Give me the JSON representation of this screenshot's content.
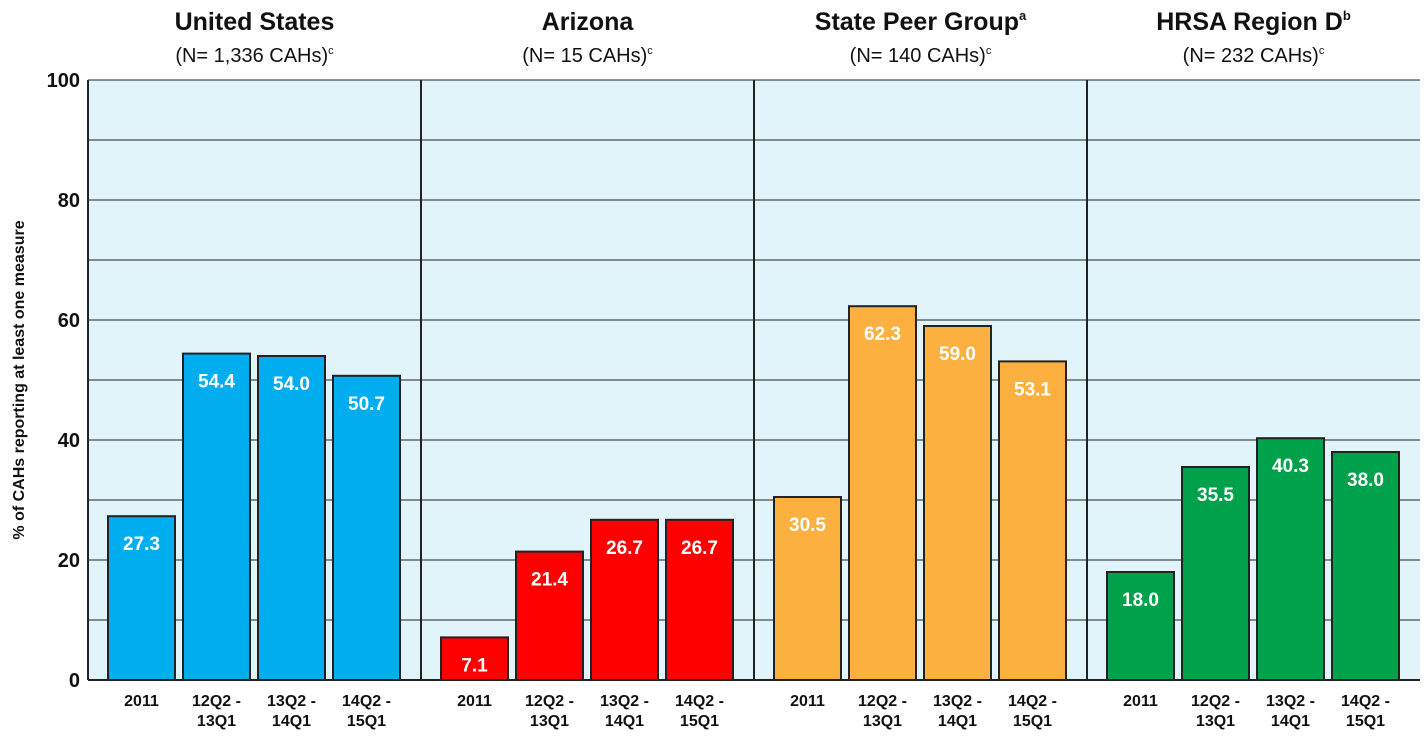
{
  "chart_data": {
    "type": "bar",
    "ylabel": "% of CAHs reporting at least one measure",
    "ylim": [
      0,
      100
    ],
    "yticks": [
      0,
      20,
      40,
      60,
      80,
      100
    ],
    "yminor": [
      10,
      30,
      50,
      70,
      90
    ],
    "grid": true,
    "panels": [
      {
        "title": "United States",
        "title_note": "",
        "subtitle": "(N= 1,336 CAHs)",
        "subtitle_note": "c",
        "color": "#00aeef",
        "categories": [
          "2011",
          "12Q2 - 13Q1",
          "13Q2 - 14Q1",
          "14Q2 - 15Q1"
        ],
        "values": [
          27.3,
          54.4,
          54.0,
          50.7
        ],
        "value_labels": [
          "27.3",
          "54.4",
          "54.0",
          "50.7"
        ]
      },
      {
        "title": "Arizona",
        "title_note": "",
        "subtitle": "(N= 15 CAHs)",
        "subtitle_note": "c",
        "color": "#ff0000",
        "categories": [
          "2011",
          "12Q2 - 13Q1",
          "13Q2 - 14Q1",
          "14Q2 - 15Q1"
        ],
        "values": [
          7.1,
          21.4,
          26.7,
          26.7
        ],
        "value_labels": [
          "7.1",
          "21.4",
          "26.7",
          "26.7"
        ]
      },
      {
        "title": "State Peer Group",
        "title_note": "a",
        "subtitle": "(N= 140 CAHs)",
        "subtitle_note": "c",
        "color": "#fbb040",
        "categories": [
          "2011",
          "12Q2 - 13Q1",
          "13Q2 - 14Q1",
          "14Q2 - 15Q1"
        ],
        "values": [
          30.5,
          62.3,
          59.0,
          53.1
        ],
        "value_labels": [
          "30.5",
          "62.3",
          "59.0",
          "53.1"
        ]
      },
      {
        "title": "HRSA Region D",
        "title_note": "b",
        "subtitle": "(N= 232 CAHs)",
        "subtitle_note": "c",
        "color": "#00a14b",
        "categories": [
          "2011",
          "12Q2 - 13Q1",
          "13Q2 - 14Q1",
          "14Q2 - 15Q1"
        ],
        "values": [
          18.0,
          35.5,
          40.3,
          38.0
        ],
        "value_labels": [
          "18.0",
          "35.5",
          "40.3",
          "38.0"
        ]
      }
    ]
  }
}
